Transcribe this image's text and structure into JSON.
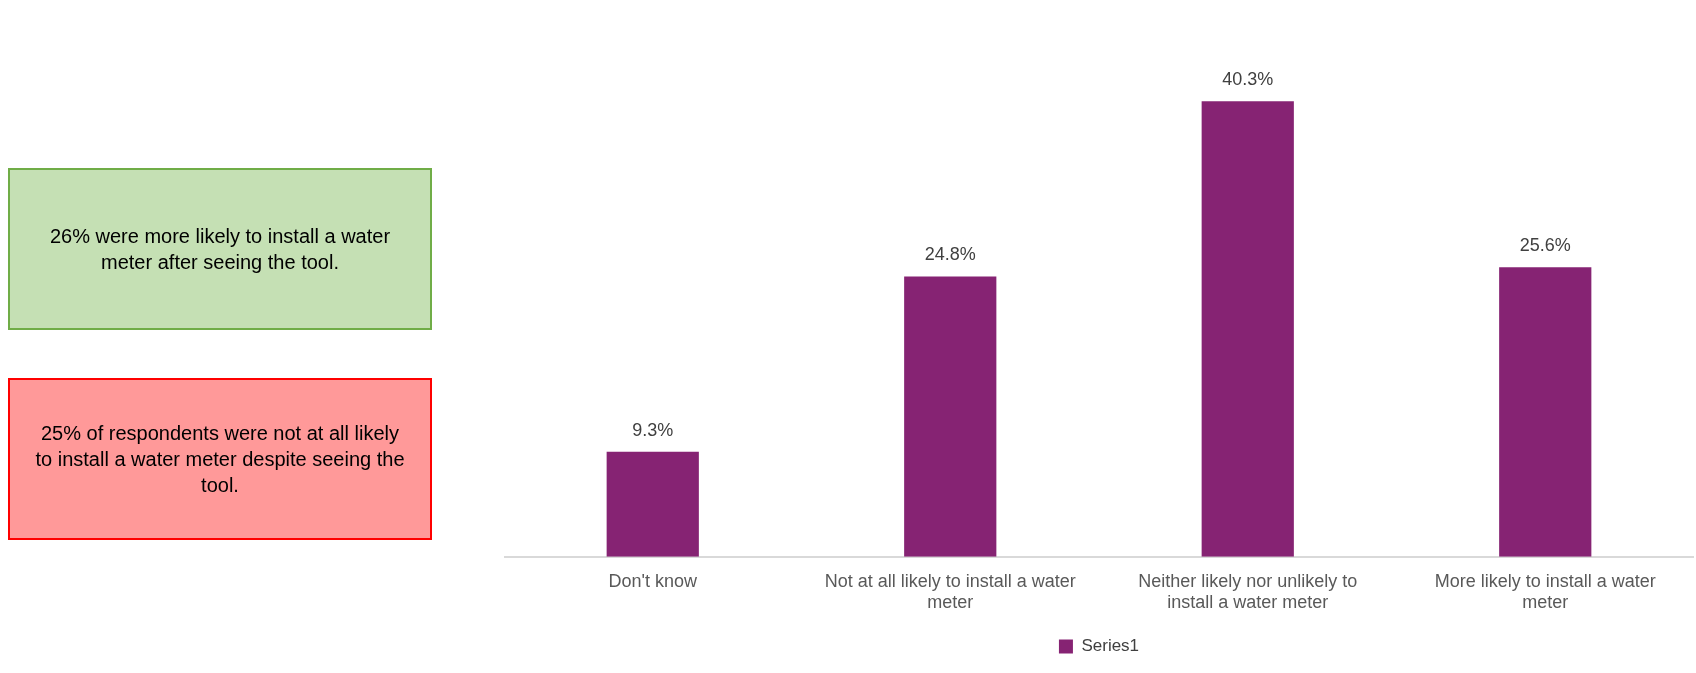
{
  "chart_data": {
    "type": "bar",
    "categories": [
      "Don't know",
      "Not at all likely to install a water meter",
      "Neither likely nor unlikely to install a water meter",
      "More likely to install a water meter"
    ],
    "series": [
      {
        "name": "Series1",
        "color": "#862373",
        "values": [
          9.3,
          24.8,
          40.3,
          25.6
        ],
        "value_labels": [
          "9.3%",
          "24.8%",
          "40.3%",
          "25.6%"
        ]
      }
    ],
    "legend": "bottom",
    "grid": false,
    "annotations": [
      "26% were more likely to install a water meter after seeing the tool.",
      "25% of respondents were not at all likely to install a water meter despite seeing the tool."
    ]
  }
}
